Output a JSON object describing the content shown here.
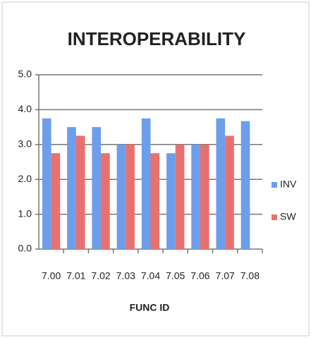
{
  "chart_data": {
    "type": "bar",
    "title": "INTEROPERABILITY",
    "x_label": "FUNC ID",
    "categories": [
      "7.00",
      "7.01",
      "7.02",
      "7.03",
      "7.04",
      "7.05",
      "7.06",
      "7.07",
      "7.08"
    ],
    "series": [
      {
        "name": "INV",
        "color": "#6d9eeb",
        "values": [
          3.75,
          3.5,
          3.5,
          3.0,
          3.75,
          2.75,
          3.0,
          3.75,
          3.67
        ]
      },
      {
        "name": "SW",
        "color": "#e8716f",
        "values": [
          2.75,
          3.25,
          2.75,
          3.0,
          2.75,
          3.0,
          3.0,
          3.25,
          null
        ]
      }
    ],
    "ylim": [
      0,
      5
    ],
    "yticks": [
      {
        "value": 0,
        "label": "0.0"
      },
      {
        "value": 1,
        "label": "1.0"
      },
      {
        "value": 2,
        "label": "2.0"
      },
      {
        "value": 3,
        "label": "3.0"
      },
      {
        "value": 4,
        "label": "4.0"
      },
      {
        "value": 5,
        "label": "5.0"
      }
    ],
    "grid": true,
    "legend": "right"
  }
}
